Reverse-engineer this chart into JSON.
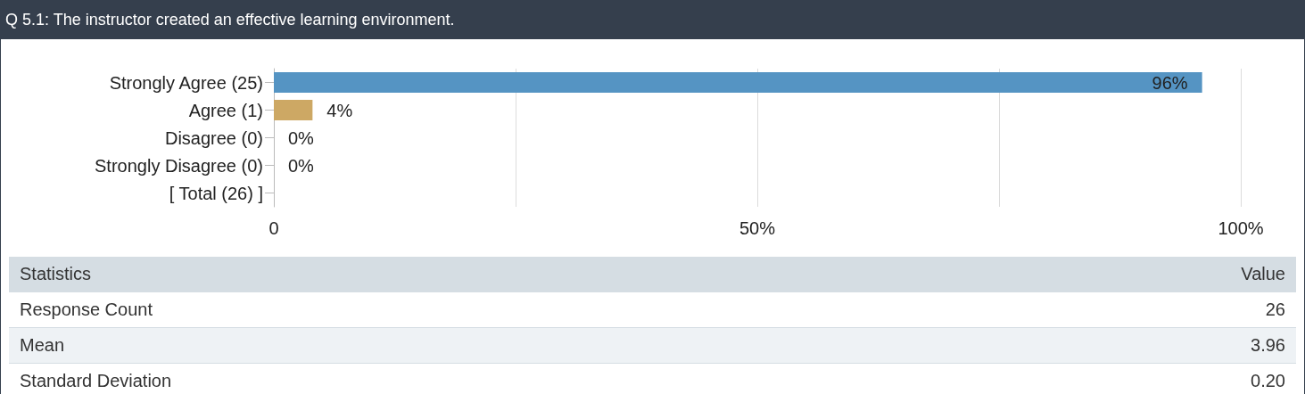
{
  "chart_data": {
    "type": "bar",
    "orientation": "horizontal",
    "title": "Q 5.1: The instructor created an effective learning environment.",
    "categories": [
      "Strongly Agree (25)",
      "Agree (1)",
      "Disagree (0)",
      "Strongly Disagree (0)",
      "[ Total (26) ]"
    ],
    "values": [
      96,
      4,
      0,
      0,
      null
    ],
    "colors": [
      "#5594c3",
      "#cda864",
      "#cda864",
      "#cda864",
      null
    ],
    "value_labels": [
      "96%",
      "4%",
      "0%",
      "0%",
      null
    ],
    "xlim": [
      0,
      100
    ],
    "xticks": [
      {
        "value": 0,
        "label": "0"
      },
      {
        "value": 25,
        "label": null
      },
      {
        "value": 50,
        "label": "50%"
      },
      {
        "value": 75,
        "label": null
      },
      {
        "value": 100,
        "label": "100%"
      }
    ],
    "grid": "x",
    "annotations": [
      "Statistics",
      "Value",
      "Response Count",
      "26",
      "Mean",
      "3.96",
      "Standard Deviation",
      "0.20"
    ]
  }
}
